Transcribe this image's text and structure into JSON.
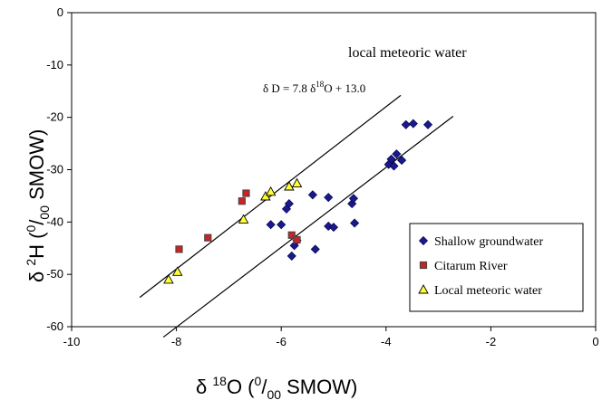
{
  "chart_data": {
    "type": "scatter",
    "xlim": [
      -10,
      0
    ],
    "ylim": [
      -60,
      0
    ],
    "x_ticks": [
      "-10",
      "-8",
      "-6",
      "-4",
      "-2",
      "0"
    ],
    "y_ticks": [
      "0",
      "-10",
      "-20",
      "-30",
      "-40",
      "-50",
      "-60"
    ],
    "xlabel": {
      "a": "δ",
      "b": "18",
      "c": "O (",
      "d": "0",
      "e": "/",
      "f": "00",
      "g": " SMOW)"
    },
    "ylabel": {
      "a": "δ",
      "b": "2",
      "c": "H (",
      "d": "0",
      "e": "/",
      "f": "00",
      "g": " SMOW)"
    },
    "annotations": {
      "line_label": "local  meteoric water",
      "equation": {
        "a": "δ D = 7.8 δ",
        "b": "18",
        "c": "O + 13.0"
      }
    },
    "legend_position": "bottom-right",
    "series": [
      {
        "name": "Shallow groundwater",
        "marker": "diamond",
        "color": "#1a1a8c",
        "points": [
          [
            -6.2,
            -40.5
          ],
          [
            -6.0,
            -40.5
          ],
          [
            -5.9,
            -37.5
          ],
          [
            -5.85,
            -36.5
          ],
          [
            -5.8,
            -46.5
          ],
          [
            -5.75,
            -44.5
          ],
          [
            -5.7,
            -43.5
          ],
          [
            -5.4,
            -34.8
          ],
          [
            -5.35,
            -45.2
          ],
          [
            -5.1,
            -35.3
          ],
          [
            -5.1,
            -40.8
          ],
          [
            -5.0,
            -41.0
          ],
          [
            -4.65,
            -36.5
          ],
          [
            -4.62,
            -35.5
          ],
          [
            -4.6,
            -40.2
          ],
          [
            -3.95,
            -29.0
          ],
          [
            -3.9,
            -28.0
          ],
          [
            -3.85,
            -29.3
          ],
          [
            -3.8,
            -27.0
          ],
          [
            -3.7,
            -28.2
          ],
          [
            -3.62,
            -21.4
          ],
          [
            -3.48,
            -21.2
          ],
          [
            -3.2,
            -21.4
          ]
        ]
      },
      {
        "name": "Citarum River",
        "marker": "square",
        "color": "#cc2222",
        "points": [
          [
            -7.95,
            -45.2
          ],
          [
            -7.4,
            -43.0
          ],
          [
            -6.75,
            -36.0
          ],
          [
            -6.67,
            -34.5
          ],
          [
            -5.8,
            -42.5
          ],
          [
            -5.7,
            -43.4
          ]
        ]
      },
      {
        "name": "Local meteoric water",
        "marker": "triangle",
        "color": "#ffff33",
        "points": [
          [
            -8.15,
            -51.0
          ],
          [
            -7.98,
            -49.5
          ],
          [
            -6.72,
            -39.5
          ],
          [
            -6.3,
            -35.1
          ],
          [
            -6.2,
            -34.2
          ],
          [
            -5.85,
            -33.2
          ],
          [
            -5.7,
            -32.6
          ]
        ]
      }
    ],
    "lines": [
      {
        "x": [
          -8.7,
          -3.72
        ],
        "y": [
          -54.4,
          -15.8
        ]
      },
      {
        "x": [
          -8.25,
          -2.72
        ],
        "y": [
          -62.0,
          -19.8
        ]
      }
    ]
  }
}
